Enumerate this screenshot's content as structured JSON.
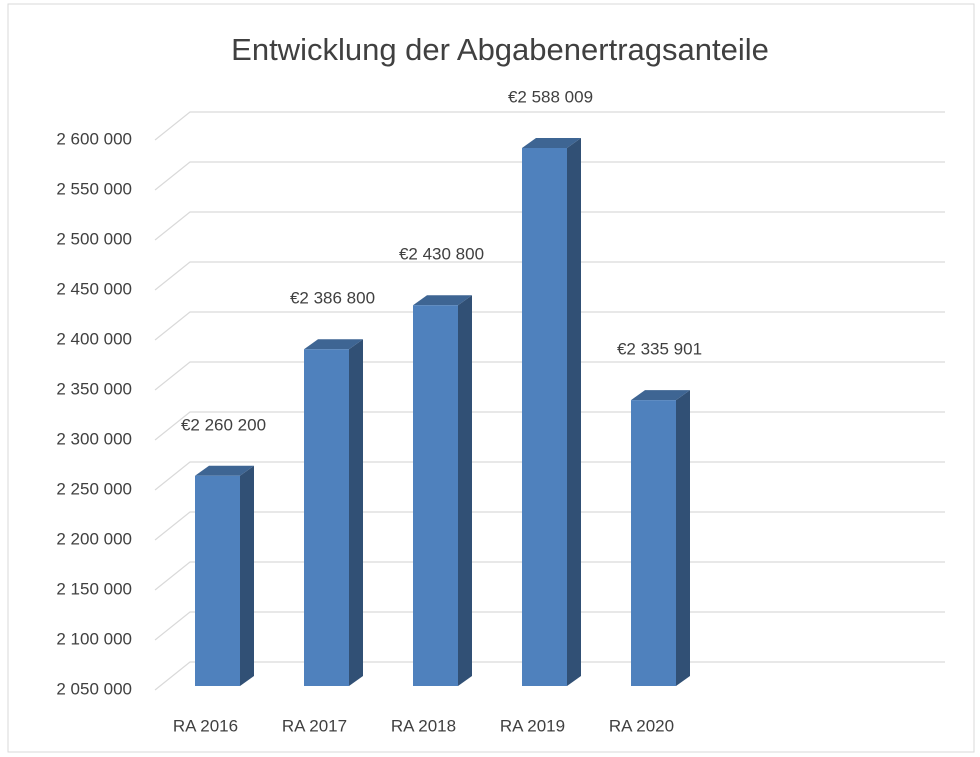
{
  "chart_data": {
    "type": "bar3d",
    "title": "Entwicklung der Abgabenertragsanteile",
    "categories": [
      "RA 2016",
      "RA 2017",
      "RA 2018",
      "RA 2019",
      "RA 2020"
    ],
    "values": [
      2260200,
      2386800,
      2430800,
      2588009,
      2335901
    ],
    "value_labels": [
      "€2 260 200",
      "€2 386 800",
      "€2 430 800",
      "€2 588 009",
      "€2 335 901"
    ],
    "color": "#4f81bd",
    "ylim": [
      2050000,
      2600000
    ],
    "yticks": [
      {
        "value": 2050000,
        "label": "2 050 000"
      },
      {
        "value": 2100000,
        "label": "2 100 000"
      },
      {
        "value": 2150000,
        "label": "2 150 000"
      },
      {
        "value": 2200000,
        "label": "2 200 000"
      },
      {
        "value": 2250000,
        "label": "2 250 000"
      },
      {
        "value": 2300000,
        "label": "2 300 000"
      },
      {
        "value": 2350000,
        "label": "2 350 000"
      },
      {
        "value": 2400000,
        "label": "2 400 000"
      },
      {
        "value": 2450000,
        "label": "2 450 000"
      },
      {
        "value": 2500000,
        "label": "2 500 000"
      },
      {
        "value": 2550000,
        "label": "2 550 000"
      },
      {
        "value": 2600000,
        "label": "2 600 000"
      }
    ],
    "grid": true
  }
}
